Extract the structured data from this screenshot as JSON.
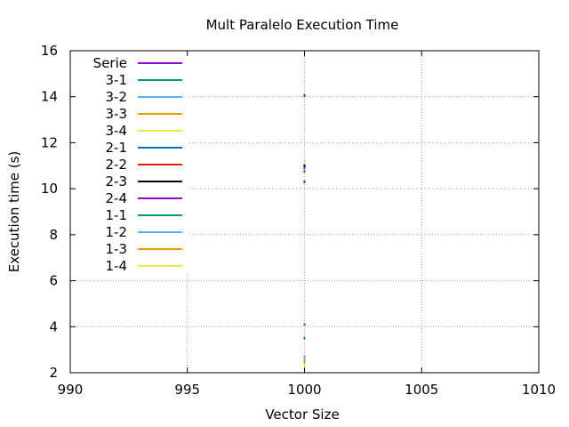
{
  "chart_data": {
    "type": "line",
    "title": "Mult Paralelo Execution Time",
    "xlabel": "Vector Size",
    "ylabel": "Execution time (s)",
    "xlim": [
      990,
      1010
    ],
    "ylim": [
      2,
      16
    ],
    "xticks": [
      990,
      995,
      1000,
      1005,
      1010
    ],
    "yticks": [
      2,
      4,
      6,
      8,
      10,
      12,
      14,
      16
    ],
    "grid": true,
    "legend_position": "top-left",
    "series": [
      {
        "name": "Serie",
        "color": "#9400d3",
        "x": [
          1000
        ],
        "y": [
          14.05
        ]
      },
      {
        "name": "3-1",
        "color": "#009e73",
        "x": [
          1000
        ],
        "y": [
          4.1
        ]
      },
      {
        "name": "3-2",
        "color": "#56b4e9",
        "x": [
          1000
        ],
        "y": [
          2.6
        ]
      },
      {
        "name": "3-3",
        "color": "#e69f00",
        "x": [
          1000
        ],
        "y": [
          2.4
        ]
      },
      {
        "name": "3-4",
        "color": "#f0e442",
        "x": [
          1000
        ],
        "y": [
          2.35
        ]
      },
      {
        "name": "2-1",
        "color": "#0072b2",
        "x": [
          1000
        ],
        "y": [
          10.9
        ]
      },
      {
        "name": "2-2",
        "color": "#e51e10",
        "x": [
          1000
        ],
        "y": [
          10.75
        ]
      },
      {
        "name": "2-3",
        "color": "#000000",
        "x": [
          1000
        ],
        "y": [
          11.0
        ]
      },
      {
        "name": "2-4",
        "color": "#9400d3",
        "x": [
          1000
        ],
        "y": [
          10.3
        ]
      },
      {
        "name": "1-1",
        "color": "#009e73",
        "x": [
          1000
        ],
        "y": [
          3.5
        ]
      },
      {
        "name": "1-2",
        "color": "#56b4e9",
        "x": [
          1000
        ],
        "y": [
          2.7
        ]
      },
      {
        "name": "1-3",
        "color": "#e69f00",
        "x": [
          1000
        ],
        "y": [
          2.5
        ]
      },
      {
        "name": "1-4",
        "color": "#f0e442",
        "x": [
          1000
        ],
        "y": [
          11.2
        ]
      }
    ]
  }
}
